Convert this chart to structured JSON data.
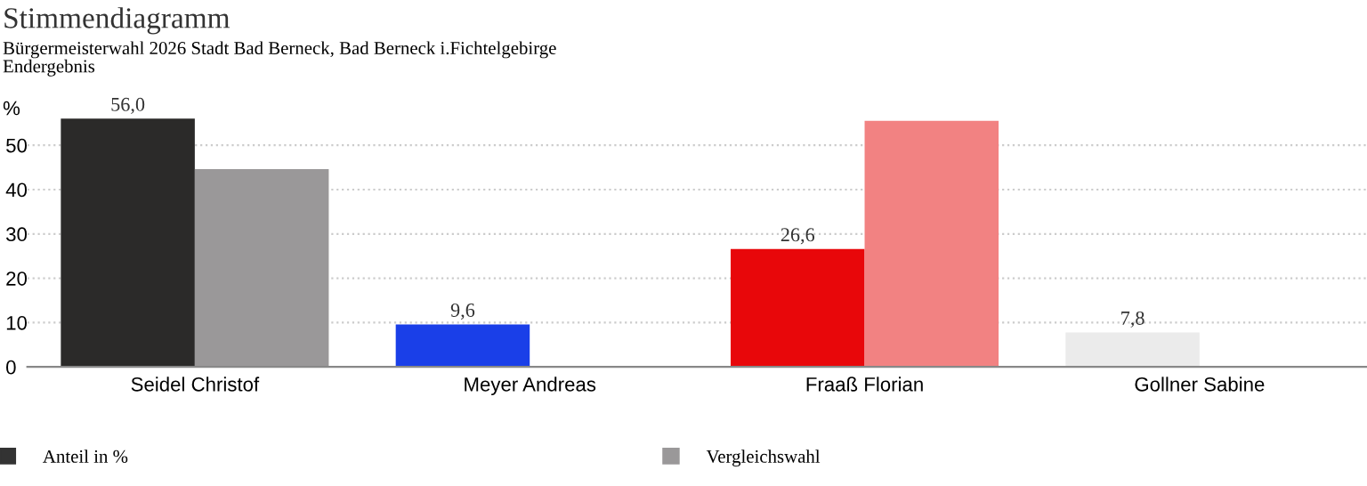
{
  "chart_data": {
    "type": "bar",
    "title": "Stimmendiagramm",
    "subtitle": "Bürgermeisterwahl 2026 Stadt Bad Berneck, Bad Berneck i.Fichtelgebirge\nEndergebnis",
    "ylabel": "%",
    "categories": [
      "Seidel Christof",
      "Meyer Andreas",
      "Fraaß Florian",
      "Gollner Sabine"
    ],
    "series": [
      {
        "name": "Anteil in %",
        "color": "#333333",
        "colors": [
          "#2b2a29",
          "#1a3fe8",
          "#e8070a",
          "#ebebeb"
        ],
        "values": [
          56.0,
          9.6,
          26.6,
          7.8
        ],
        "value_labels": [
          "56,0",
          "9,6",
          "26,6",
          "7,8"
        ]
      },
      {
        "name": "Vergleichswahl",
        "color": "#9a9899",
        "colors": [
          "#9a9899",
          null,
          "#f28282",
          null
        ],
        "values": [
          44.6,
          null,
          55.5,
          null
        ]
      }
    ],
    "ylim": [
      0,
      57
    ],
    "yticks": [
      0,
      10,
      20,
      30,
      40,
      50
    ],
    "grid": "y",
    "legend": "bottom"
  }
}
